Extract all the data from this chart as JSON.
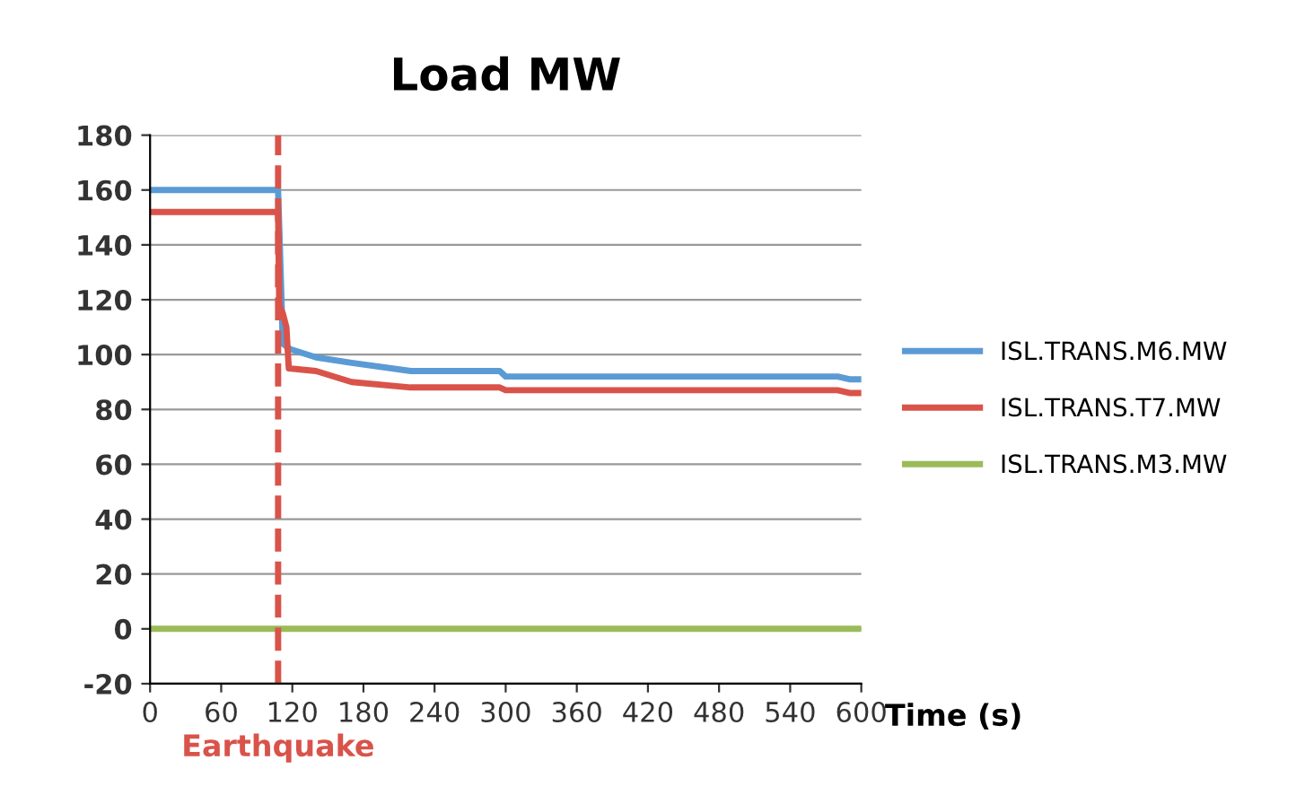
{
  "chart_data": {
    "type": "line",
    "title": "Load MW",
    "xlabel": "Time (s)",
    "xlim": [
      0,
      600
    ],
    "xticks": [
      0,
      60,
      120,
      180,
      240,
      300,
      360,
      420,
      480,
      540,
      600
    ],
    "ylim": [
      -20,
      180
    ],
    "yticks": [
      -20,
      0,
      20,
      40,
      60,
      80,
      100,
      120,
      140,
      160,
      180
    ],
    "grid": "y",
    "legend": "right",
    "line_style": "solid",
    "marker": "none",
    "ref_lines": [
      {
        "axis": "x",
        "value": 108,
        "label": "Earthquake",
        "color": "#d9534a",
        "line_style": "dashed"
      }
    ],
    "series": [
      {
        "name": "ISL.TRANS.M6.MW",
        "color": "#5b9bd5",
        "x": [
          0,
          108,
          112,
          118,
          140,
          170,
          220,
          295,
          300,
          580,
          590,
          600
        ],
        "values": [
          160,
          160,
          104,
          102,
          99,
          97,
          94,
          94,
          92,
          92,
          91,
          91
        ]
      },
      {
        "name": "ISL.TRANS.T7.MW",
        "color": "#d9534a",
        "x": [
          0,
          108,
          109,
          112,
          115,
          117,
          140,
          170,
          220,
          295,
          300,
          580,
          590,
          600
        ],
        "values": [
          152,
          152,
          118,
          115,
          110,
          95,
          94,
          90,
          88,
          88,
          87,
          87,
          86,
          86
        ]
      },
      {
        "name": "ISL.TRANS.M3.MW",
        "color": "#9bbb59",
        "x": [
          0,
          600
        ],
        "values": [
          0,
          0
        ]
      }
    ]
  }
}
